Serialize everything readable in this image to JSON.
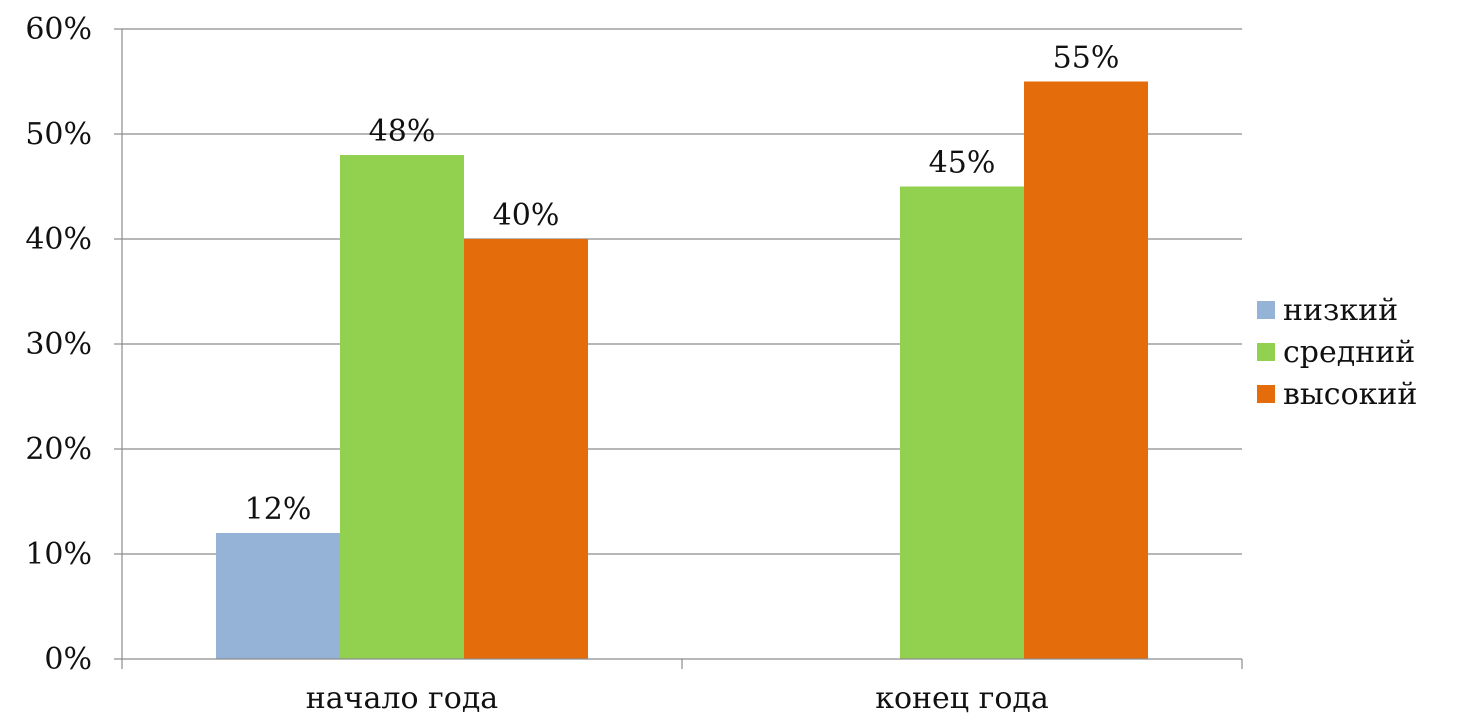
{
  "chart_data": {
    "type": "bar",
    "categories": [
      "начало года",
      "конец года"
    ],
    "series": [
      {
        "name": "низкий",
        "values": [
          12,
          0
        ],
        "labels": [
          "12%",
          ""
        ],
        "color": "#95b3d7"
      },
      {
        "name": "средний",
        "values": [
          48,
          45
        ],
        "labels": [
          "48%",
          "45%"
        ],
        "color": "#92d050"
      },
      {
        "name": "высокий",
        "values": [
          40,
          55
        ],
        "labels": [
          "40%",
          "55%"
        ],
        "color": "#e46c0a"
      }
    ],
    "y_ticks": [
      "0%",
      "10%",
      "20%",
      "30%",
      "40%",
      "50%",
      "60%"
    ],
    "ylim": [
      0,
      60
    ],
    "grid": true,
    "legend_position": "right"
  }
}
